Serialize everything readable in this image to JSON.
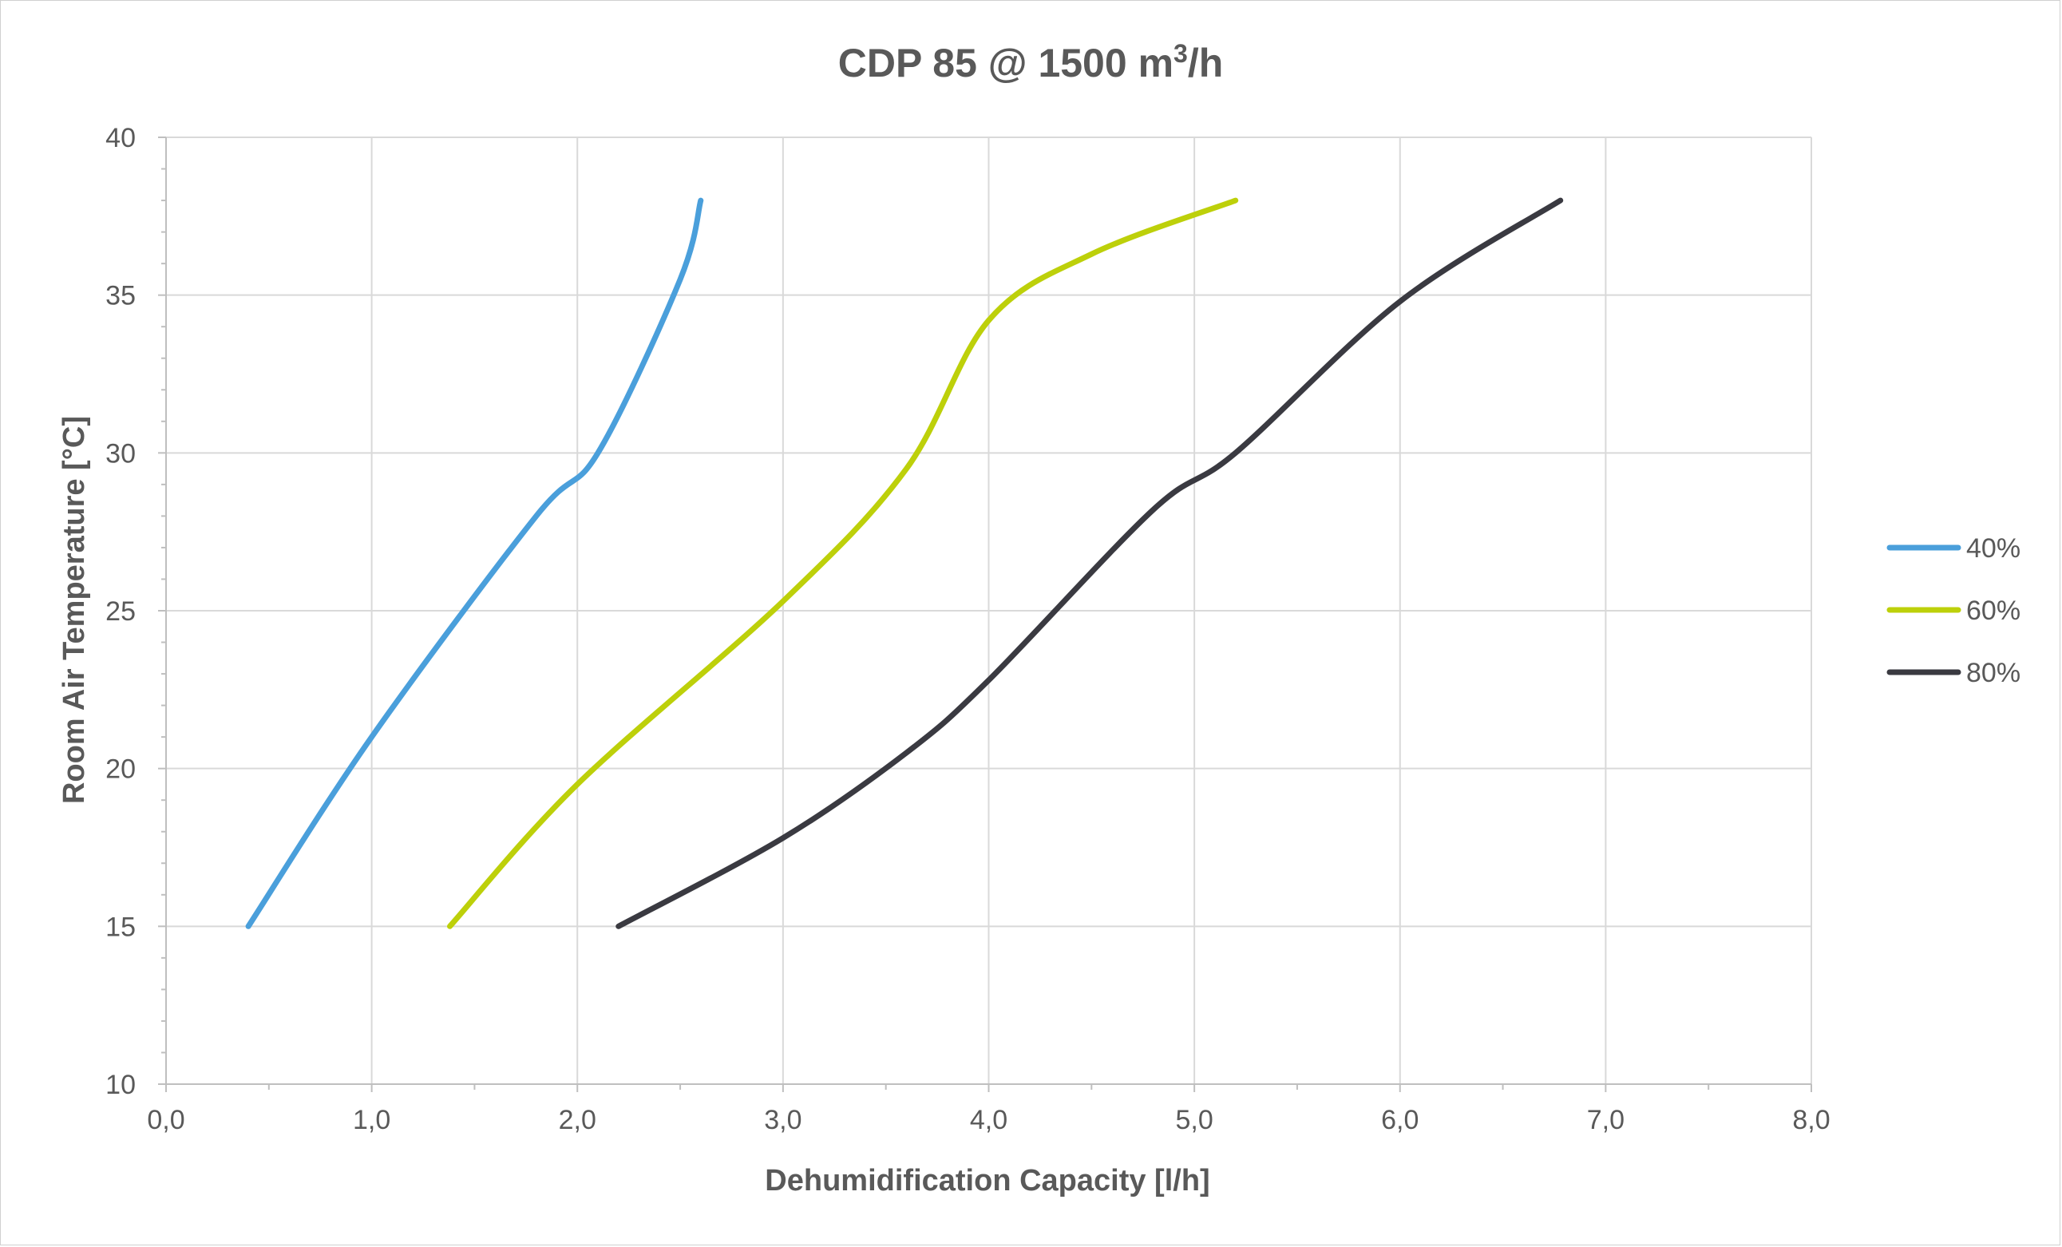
{
  "chart_data": {
    "type": "line",
    "title_main": "CDP 85 @ 1500 m",
    "title_sup": "3",
    "title_tail": "/h",
    "xlabel": "Dehumidification Capacity [l/h]",
    "ylabel": "Room Air  Temperature [°C]",
    "xlim": [
      0,
      8
    ],
    "ylim": [
      10,
      40
    ],
    "x_ticks": [
      "0,0",
      "1,0",
      "2,0",
      "3,0",
      "4,0",
      "5,0",
      "6,0",
      "7,0",
      "8,0"
    ],
    "y_ticks": [
      "10",
      "15",
      "20",
      "25",
      "30",
      "35",
      "40"
    ],
    "grid": true,
    "legend_position": "right",
    "series": [
      {
        "name": "40%",
        "color": "#4a9fdb",
        "points": [
          [
            0.4,
            15
          ],
          [
            1.0,
            21
          ],
          [
            1.8,
            28
          ],
          [
            2.1,
            30
          ],
          [
            2.5,
            35.5
          ],
          [
            2.6,
            38
          ]
        ]
      },
      {
        "name": "60%",
        "color": "#bdd00a",
        "points": [
          [
            1.38,
            15
          ],
          [
            2.0,
            19.5
          ],
          [
            3.0,
            25.3
          ],
          [
            3.6,
            29.5
          ],
          [
            4.0,
            34.2
          ],
          [
            4.5,
            36.3
          ],
          [
            5.2,
            38
          ]
        ]
      },
      {
        "name": "80%",
        "color": "#3a3a41",
        "points": [
          [
            2.2,
            15
          ],
          [
            3.0,
            17.8
          ],
          [
            3.6,
            20.5
          ],
          [
            4.0,
            22.8
          ],
          [
            4.8,
            28.2
          ],
          [
            5.2,
            30
          ],
          [
            6.0,
            34.8
          ],
          [
            6.78,
            38
          ]
        ]
      }
    ]
  }
}
